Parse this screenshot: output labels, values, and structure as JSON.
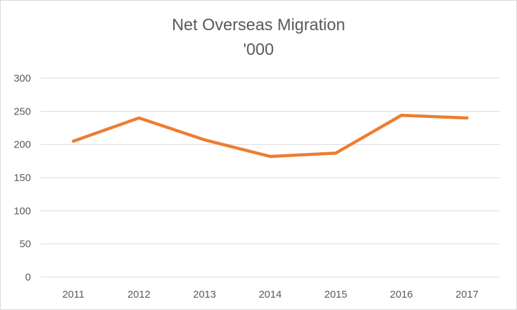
{
  "chart_data": {
    "type": "line",
    "title": "Net Overseas Migration",
    "subtitle": "'000",
    "categories": [
      "2011",
      "2012",
      "2013",
      "2014",
      "2015",
      "2016",
      "2017"
    ],
    "series": [
      {
        "values": [
          205,
          240,
          207,
          182,
          187,
          244,
          240
        ],
        "color": "#ED7D31"
      }
    ],
    "ylim": [
      0,
      300
    ],
    "yticks": [
      0,
      50,
      100,
      150,
      200,
      250,
      300
    ],
    "grid": true,
    "gridColor": "#d9d9d9"
  }
}
